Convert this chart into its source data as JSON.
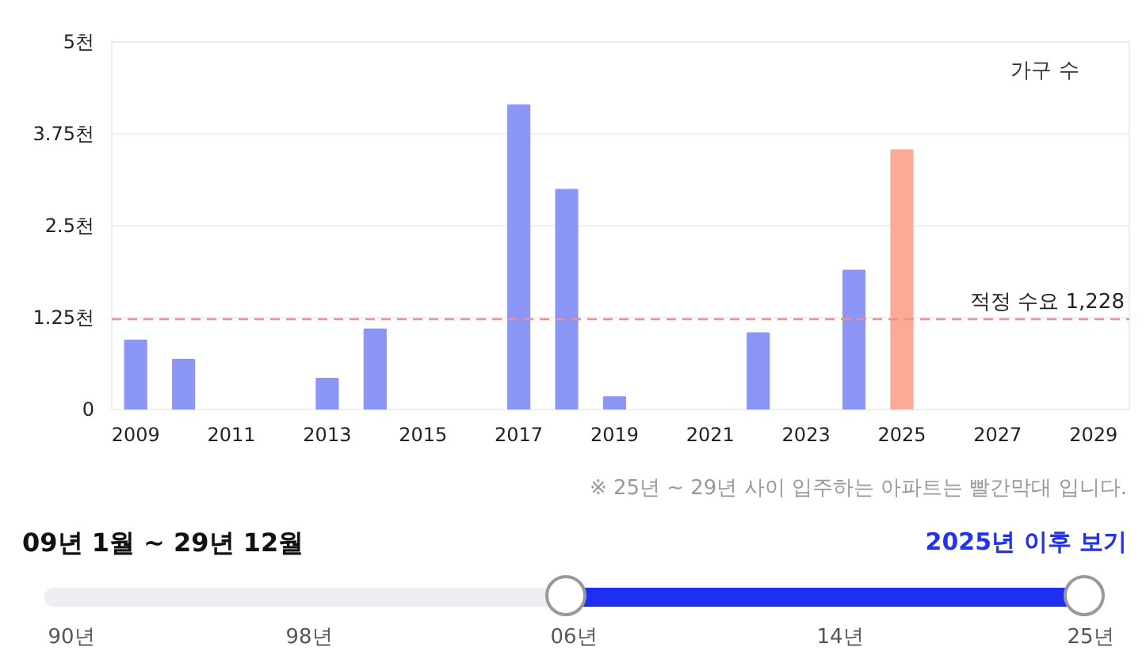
{
  "chart_data": {
    "type": "bar",
    "categories": [
      "2009",
      null,
      "2011",
      null,
      "2013",
      null,
      "2015",
      null,
      "2017",
      null,
      "2019",
      null,
      "2021",
      null,
      "2023",
      null,
      "2025",
      null,
      "2027",
      null,
      "2029"
    ],
    "values": [
      0.94,
      0.68,
      null,
      null,
      0.42,
      1.09,
      null,
      null,
      4.14,
      2.99,
      0.17,
      null,
      null,
      1.04,
      null,
      1.89,
      3.53,
      null,
      null,
      null,
      null
    ],
    "colors": [
      "#8c96f7",
      "#8c96f7",
      "#8c96f7",
      "#8c96f7",
      "#8c96f7",
      "#8c96f7",
      "#8c96f7",
      "#8c96f7",
      "#8c96f7",
      "#8c96f7",
      "#8c96f7",
      "#8c96f7",
      "#8c96f7",
      "#8c96f7",
      "#8c96f7",
      "#8c96f7",
      "#fbaa98",
      "#8c96f7",
      "#8c96f7",
      "#8c96f7",
      "#8c96f7"
    ],
    "ylim": [
      0,
      5
    ],
    "yticks": [
      0,
      {
        "value": 1.25,
        "label": "1.25천"
      },
      {
        "value": 2.5,
        "label": "2.5천"
      },
      {
        "value": 3.75,
        "label": "3.75천"
      },
      {
        "value": 5,
        "label": "5천"
      }
    ],
    "grid": "y",
    "ref_lines": [
      {
        "axis": "y",
        "value": 1.228,
        "label": "적정 수요 1,228",
        "color": "#f78a8a",
        "line_style": "dashed"
      }
    ],
    "annotations": [
      "가구 수",
      "※ 25년 ~ 29년 사이 입주하는 아파트는 빨간막대 입니다.",
      "09년 1월 ~ 29년 12월",
      "2025년 이후 보기",
      "90년",
      "98년",
      "06년",
      "14년",
      "25년"
    ]
  }
}
